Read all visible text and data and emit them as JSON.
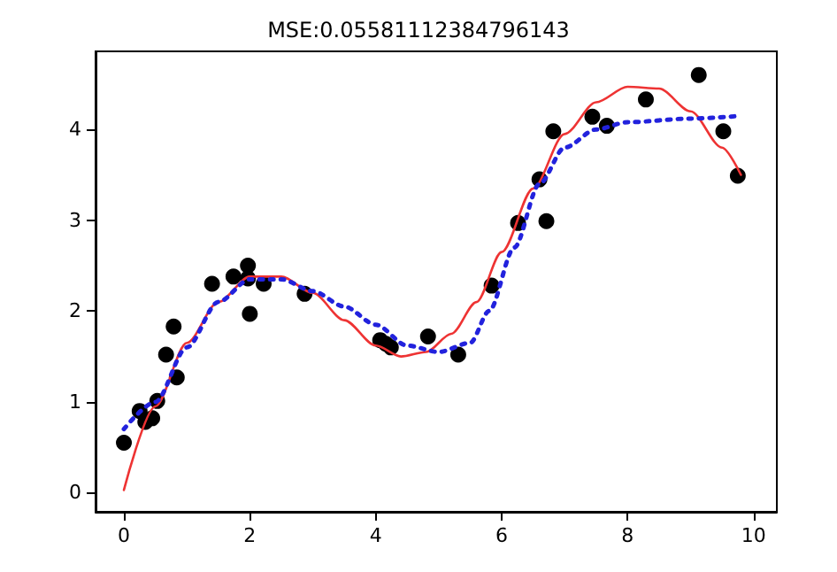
{
  "chart_data": {
    "type": "scatter",
    "title": "MSE:0.05581112384796143",
    "xlim": [
      -0.45,
      10.37
    ],
    "ylim": [
      -0.21,
      4.86
    ],
    "xticks": [
      0,
      2,
      4,
      6,
      8,
      10
    ],
    "yticks": [
      0,
      1,
      2,
      3,
      4
    ],
    "grid": false,
    "series": [
      {
        "color": "#000000",
        "marker": "circle",
        "x": [
          0,
          0.25,
          0.34,
          0.45,
          0.53,
          0.67,
          0.79,
          0.84,
          1.4,
          1.74,
          1.97,
          1.97,
          2.0,
          2.22,
          2.87,
          4.07,
          4.16,
          4.24,
          4.83,
          5.31,
          5.84,
          6.26,
          6.6,
          6.71,
          6.82,
          7.44,
          7.67,
          8.29,
          9.13,
          9.52,
          9.75
        ],
        "values": [
          0.55,
          0.9,
          0.78,
          0.82,
          1.01,
          1.52,
          1.83,
          1.27,
          2.3,
          2.38,
          2.5,
          2.36,
          1.97,
          2.3,
          2.19,
          1.68,
          1.64,
          1.6,
          1.72,
          1.52,
          2.28,
          2.97,
          3.45,
          2.99,
          3.98,
          4.14,
          4.04,
          4.33,
          4.6,
          3.98,
          3.49
        ]
      },
      {
        "type": "line",
        "color": "#ee3333",
        "line_style": "solid",
        "marker": "none",
        "x": [
          0,
          0.5,
          1,
          1.5,
          2,
          2.5,
          3,
          3.5,
          4,
          4.4,
          4.8,
          5.2,
          5.6,
          6,
          6.5,
          7,
          7.5,
          8,
          8.5,
          9,
          9.5,
          9.8
        ],
        "values": [
          0.03,
          0.95,
          1.65,
          2.1,
          2.38,
          2.38,
          2.2,
          1.9,
          1.62,
          1.5,
          1.55,
          1.75,
          2.1,
          2.65,
          3.35,
          3.95,
          4.3,
          4.47,
          4.45,
          4.2,
          3.8,
          3.5
        ]
      },
      {
        "type": "line",
        "color": "#2222dd",
        "line_style": "dotted",
        "marker": "none",
        "x": [
          0,
          0.5,
          1,
          1.5,
          2,
          2.5,
          3,
          3.5,
          4,
          4.5,
          5,
          5.5,
          5.8,
          6.2,
          6.6,
          7,
          7.5,
          8,
          9,
          9.8
        ],
        "values": [
          0.7,
          1.0,
          1.6,
          2.1,
          2.35,
          2.35,
          2.22,
          2.05,
          1.85,
          1.62,
          1.55,
          1.65,
          2.0,
          2.7,
          3.4,
          3.8,
          4.0,
          4.08,
          4.12,
          4.15
        ]
      }
    ]
  }
}
